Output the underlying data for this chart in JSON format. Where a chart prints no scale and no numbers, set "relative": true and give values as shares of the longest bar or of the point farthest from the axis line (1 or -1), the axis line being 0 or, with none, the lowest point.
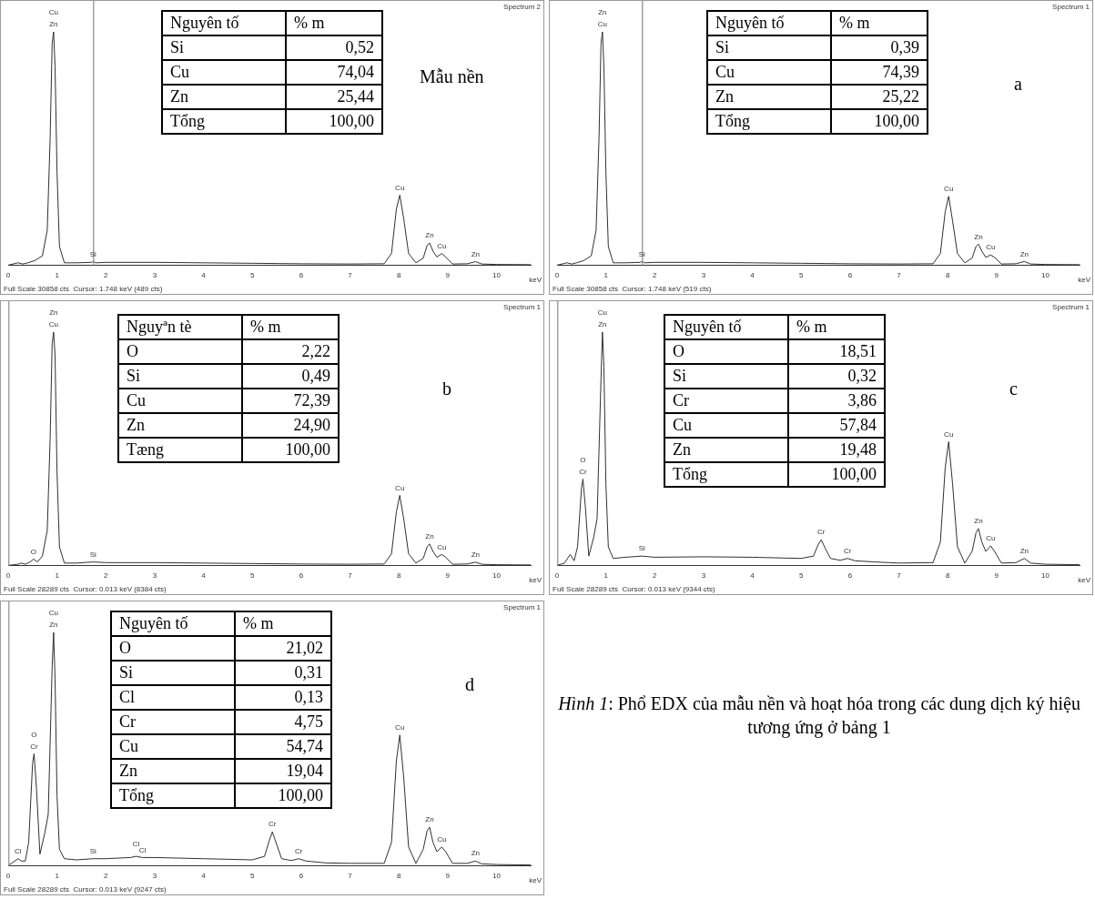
{
  "chart_data": [
    {
      "type": "line",
      "relative": true,
      "xlabel": "keV",
      "xlim": [
        0,
        10.7
      ],
      "xticks": [
        0,
        1,
        2,
        3,
        4,
        5,
        6,
        7,
        8,
        9,
        10
      ],
      "ref_lines": [
        {
          "axis": "x",
          "value": 1.748,
          "color": "#a0a0a0"
        }
      ],
      "annotations": [
        "Spectrum 2",
        "Full Scale 30858 cts  Cursor: 1.748 keV (489 cts)",
        "Mẫu nền",
        "Nguyên tố",
        "% m",
        "Si",
        "0,52",
        "Cu",
        "74,04",
        "Zn",
        "25,44",
        "Tổng",
        "100,00",
        {
          "text": "Zn",
          "x": 0.93,
          "y": 1
        },
        {
          "text": "Cu",
          "x": 0.93,
          "y": 1
        },
        {
          "text": "Si",
          "x": 1.74,
          "y": 0.015
        },
        {
          "text": "Cu",
          "x": 8.02,
          "y": 0.3
        },
        {
          "text": "Zn",
          "x": 8.63,
          "y": 0.095
        },
        {
          "text": "Cu",
          "x": 8.88,
          "y": 0.05
        },
        {
          "text": "Zn",
          "x": 9.57,
          "y": 0.015
        }
      ],
      "series": [
        {
          "color": "#303030",
          "x": [
            0,
            0.2,
            0.3,
            0.4,
            0.55,
            0.7,
            0.8,
            0.86,
            0.9,
            0.93,
            0.96,
            1.0,
            1.05,
            1.15,
            1.4,
            1.7,
            1.74,
            1.8,
            2.0,
            3,
            4,
            5,
            6,
            7,
            7.7,
            7.85,
            7.95,
            8.02,
            8.1,
            8.2,
            8.35,
            8.5,
            8.58,
            8.63,
            8.7,
            8.78,
            8.88,
            8.96,
            9.1,
            9.4,
            9.57,
            9.7,
            10,
            10.7
          ],
          "values": [
            0,
            0.01,
            0.005,
            0.01,
            0.02,
            0.04,
            0.15,
            0.55,
            0.95,
            1,
            0.85,
            0.4,
            0.08,
            0.01,
            0.01,
            0.012,
            0.015,
            0.01,
            0.012,
            0.012,
            0.01,
            0.008,
            0.006,
            0.005,
            0.006,
            0.05,
            0.24,
            0.3,
            0.2,
            0.05,
            0.01,
            0.03,
            0.085,
            0.095,
            0.06,
            0.035,
            0.05,
            0.035,
            0.005,
            0.006,
            0.015,
            0.005,
            0.003,
            0.002
          ]
        }
      ]
    },
    {
      "type": "line",
      "relative": true,
      "xlabel": "keV",
      "xlim": [
        0,
        10.7
      ],
      "xticks": [
        0,
        1,
        2,
        3,
        4,
        5,
        6,
        7,
        8,
        9,
        10
      ],
      "ref_lines": [
        {
          "axis": "x",
          "value": 1.748,
          "color": "#a0a0a0"
        }
      ],
      "annotations": [
        "Spectrum 1",
        "Full Scale 30858 cts  Cursor: 1.748 keV (519 cts)",
        "a",
        "Nguyên tố",
        "% m",
        "Si",
        "0,39",
        "Cu",
        "74,39",
        "Zn",
        "25,22",
        "Tổng",
        "100,00",
        {
          "text": "Cu",
          "x": 0.93,
          "y": 1
        },
        {
          "text": "Zn",
          "x": 0.93,
          "y": 1
        },
        {
          "text": "Si",
          "x": 1.74,
          "y": 0.016
        },
        {
          "text": "Cu",
          "x": 8.02,
          "y": 0.295
        },
        {
          "text": "Zn",
          "x": 8.63,
          "y": 0.09
        },
        {
          "text": "Cu",
          "x": 8.88,
          "y": 0.044
        },
        {
          "text": "Zn",
          "x": 9.57,
          "y": 0.016
        }
      ],
      "series": [
        {
          "color": "#303030",
          "x": [
            0,
            0.2,
            0.3,
            0.4,
            0.55,
            0.7,
            0.8,
            0.86,
            0.9,
            0.93,
            0.96,
            1.0,
            1.05,
            1.15,
            1.4,
            1.7,
            1.74,
            1.8,
            2.0,
            3,
            4,
            5,
            6,
            7,
            7.7,
            7.85,
            7.95,
            8.02,
            8.1,
            8.2,
            8.35,
            8.5,
            8.58,
            8.63,
            8.7,
            8.78,
            8.88,
            8.96,
            9.1,
            9.4,
            9.57,
            9.7,
            10,
            10.7
          ],
          "values": [
            0,
            0.01,
            0.005,
            0.01,
            0.02,
            0.04,
            0.15,
            0.55,
            0.95,
            1,
            0.85,
            0.4,
            0.08,
            0.01,
            0.01,
            0.012,
            0.016,
            0.01,
            0.012,
            0.012,
            0.01,
            0.008,
            0.006,
            0.005,
            0.006,
            0.05,
            0.23,
            0.295,
            0.19,
            0.05,
            0.01,
            0.03,
            0.08,
            0.09,
            0.06,
            0.033,
            0.044,
            0.033,
            0.005,
            0.006,
            0.016,
            0.005,
            0.003,
            0.002
          ]
        }
      ]
    },
    {
      "type": "line",
      "relative": true,
      "xlabel": "keV",
      "xlim": [
        0,
        10.7
      ],
      "xticks": [
        0,
        1,
        2,
        3,
        4,
        5,
        6,
        7,
        8,
        9,
        10
      ],
      "ref_lines": [
        {
          "axis": "x",
          "value": 0.013,
          "color": "#a0a0a0"
        }
      ],
      "annotations": [
        "Spectrum 1",
        "Full Scale 28289 cts  Cursor: 0.013 keV (8384 cts)",
        "b",
        "Nguyªn tè",
        "% m",
        "O",
        "2,22",
        "Si",
        "0,49",
        "Cu",
        "72,39",
        "Zn",
        "24,90",
        "Tæng",
        "100,00",
        {
          "text": "Cu",
          "x": 0.93,
          "y": 1
        },
        {
          "text": "Zn",
          "x": 0.93,
          "y": 1
        },
        {
          "text": "O",
          "x": 0.52,
          "y": 0.027
        },
        {
          "text": "Si",
          "x": 1.74,
          "y": 0.015
        },
        {
          "text": "Cu",
          "x": 8.02,
          "y": 0.3
        },
        {
          "text": "Zn",
          "x": 8.63,
          "y": 0.092
        },
        {
          "text": "Cu",
          "x": 8.88,
          "y": 0.047
        },
        {
          "text": "Zn",
          "x": 9.57,
          "y": 0.014
        }
      ],
      "series": [
        {
          "color": "#303030",
          "x": [
            0,
            0.2,
            0.27,
            0.35,
            0.45,
            0.52,
            0.6,
            0.7,
            0.8,
            0.86,
            0.9,
            0.93,
            0.96,
            1.0,
            1.05,
            1.15,
            1.4,
            1.74,
            2.0,
            3,
            4,
            5,
            6,
            7,
            7.7,
            7.85,
            7.95,
            8.02,
            8.1,
            8.2,
            8.35,
            8.5,
            8.58,
            8.63,
            8.7,
            8.78,
            8.88,
            8.96,
            9.1,
            9.4,
            9.57,
            9.7,
            10,
            10.7
          ],
          "values": [
            0,
            0.005,
            0.01,
            0.005,
            0.015,
            0.027,
            0.015,
            0.04,
            0.15,
            0.55,
            0.95,
            1,
            0.9,
            0.4,
            0.08,
            0.01,
            0.01,
            0.015,
            0.012,
            0.012,
            0.01,
            0.008,
            0.006,
            0.005,
            0.006,
            0.05,
            0.23,
            0.3,
            0.2,
            0.05,
            0.01,
            0.03,
            0.08,
            0.092,
            0.06,
            0.035,
            0.047,
            0.035,
            0.005,
            0.006,
            0.014,
            0.005,
            0.003,
            0.002
          ]
        }
      ]
    },
    {
      "type": "line",
      "relative": true,
      "xlabel": "keV",
      "xlim": [
        0,
        10.7
      ],
      "xticks": [
        0,
        1,
        2,
        3,
        4,
        5,
        6,
        7,
        8,
        9,
        10
      ],
      "ref_lines": [
        {
          "axis": "x",
          "value": 0.013,
          "color": "#a0a0a0"
        }
      ],
      "annotations": [
        "Spectrum 1",
        "Full Scale 28289 cts  Cursor: 0.013 keV (9344 cts)",
        "c",
        "Nguyên tố",
        "% m",
        "O",
        "18,51",
        "Si",
        "0,32",
        "Cr",
        "3,86",
        "Cu",
        "57,84",
        "Zn",
        "19,48",
        "Tổng",
        "100,00",
        {
          "text": "Cr",
          "x": 0.53,
          "y": 0.37
        },
        {
          "text": "O",
          "x": 0.53,
          "y": 0.37
        },
        {
          "text": "Zn",
          "x": 0.93,
          "y": 1
        },
        {
          "text": "Cu",
          "x": 0.93,
          "y": 1
        },
        {
          "text": "Si",
          "x": 1.74,
          "y": 0.04
        },
        {
          "text": "Cr",
          "x": 5.41,
          "y": 0.11
        },
        {
          "text": "Cr",
          "x": 5.95,
          "y": 0.03
        },
        {
          "text": "Cu",
          "x": 8.02,
          "y": 0.53
        },
        {
          "text": "Zn",
          "x": 8.63,
          "y": 0.158
        },
        {
          "text": "Cu",
          "x": 8.88,
          "y": 0.084
        },
        {
          "text": "Zn",
          "x": 9.57,
          "y": 0.03
        }
      ],
      "series": [
        {
          "color": "#303030",
          "x": [
            0,
            0.15,
            0.27,
            0.35,
            0.42,
            0.5,
            0.53,
            0.58,
            0.65,
            0.75,
            0.82,
            0.9,
            0.93,
            0.96,
            1.0,
            1.05,
            1.15,
            1.4,
            1.74,
            2,
            3,
            4,
            5,
            5.25,
            5.35,
            5.41,
            5.5,
            5.6,
            5.8,
            5.95,
            6.1,
            6.5,
            7,
            7.7,
            7.85,
            7.95,
            8.02,
            8.1,
            8.2,
            8.35,
            8.5,
            8.58,
            8.63,
            8.7,
            8.78,
            8.88,
            8.96,
            9.1,
            9.4,
            9.57,
            9.7,
            10,
            10.7
          ],
          "values": [
            0,
            0.01,
            0.047,
            0.02,
            0.08,
            0.33,
            0.37,
            0.25,
            0.04,
            0.12,
            0.2,
            0.8,
            1,
            0.85,
            0.35,
            0.08,
            0.03,
            0.035,
            0.04,
            0.035,
            0.037,
            0.035,
            0.03,
            0.04,
            0.09,
            0.11,
            0.07,
            0.03,
            0.022,
            0.03,
            0.02,
            0.015,
            0.01,
            0.012,
            0.1,
            0.42,
            0.53,
            0.35,
            0.08,
            0.01,
            0.06,
            0.14,
            0.158,
            0.1,
            0.06,
            0.084,
            0.06,
            0.01,
            0.012,
            0.03,
            0.01,
            0.005,
            0.003
          ]
        }
      ]
    },
    {
      "type": "line",
      "relative": true,
      "xlabel": "keV",
      "xlim": [
        0,
        10.7
      ],
      "xticks": [
        0,
        1,
        2,
        3,
        4,
        5,
        6,
        7,
        8,
        9,
        10
      ],
      "ref_lines": [
        {
          "axis": "x",
          "value": 0.013,
          "color": "#a0a0a0"
        }
      ],
      "annotations": [
        "Spectrum 1",
        "Full Scale 28289 cts  Cursor: 0.013 keV (9247 cts)",
        "d",
        "Nguyên tố",
        "% m",
        "O",
        "21,02",
        "Si",
        "0,31",
        "Cl",
        "0,13",
        "Cr",
        "4,75",
        "Cu",
        "54,74",
        "Zn",
        "19,04",
        "Tổng",
        "100,00",
        {
          "text": "Cl",
          "x": 0.2,
          "y": 0.03
        },
        {
          "text": "Cr",
          "x": 0.53,
          "y": 0.48
        },
        {
          "text": "O",
          "x": 0.53,
          "y": 0.48
        },
        {
          "text": "Zn",
          "x": 0.93,
          "y": 1
        },
        {
          "text": "Cu",
          "x": 0.93,
          "y": 1
        },
        {
          "text": "Si",
          "x": 1.74,
          "y": 0.03
        },
        {
          "text": "Cl",
          "x": 2.62,
          "y": 0.06
        },
        {
          "text": "Cl",
          "x": 2.75,
          "y": 0.035
        },
        {
          "text": "Cr",
          "x": 5.41,
          "y": 0.145
        },
        {
          "text": "Cr",
          "x": 5.95,
          "y": 0.03
        },
        {
          "text": "Cu",
          "x": 8.02,
          "y": 0.56
        },
        {
          "text": "Zn",
          "x": 8.63,
          "y": 0.165
        },
        {
          "text": "Cu",
          "x": 8.88,
          "y": 0.08
        },
        {
          "text": "Zn",
          "x": 9.57,
          "y": 0.02
        }
      ],
      "series": [
        {
          "color": "#303030",
          "x": [
            0,
            0.2,
            0.27,
            0.35,
            0.42,
            0.5,
            0.53,
            0.58,
            0.65,
            0.75,
            0.82,
            0.9,
            0.93,
            0.96,
            1.0,
            1.05,
            1.15,
            1.4,
            1.74,
            2,
            2.5,
            2.62,
            2.75,
            3,
            4,
            5,
            5.25,
            5.35,
            5.41,
            5.5,
            5.6,
            5.8,
            5.95,
            6.1,
            6.5,
            7,
            7.7,
            7.85,
            7.95,
            8.02,
            8.1,
            8.2,
            8.35,
            8.5,
            8.58,
            8.63,
            8.7,
            8.78,
            8.88,
            8.96,
            9.1,
            9.4,
            9.57,
            9.7,
            10,
            10.7
          ],
          "values": [
            0,
            0.03,
            0.02,
            0.02,
            0.1,
            0.44,
            0.48,
            0.33,
            0.05,
            0.14,
            0.22,
            0.85,
            1,
            0.8,
            0.3,
            0.07,
            0.03,
            0.025,
            0.03,
            0.03,
            0.035,
            0.04,
            0.035,
            0.035,
            0.03,
            0.025,
            0.04,
            0.11,
            0.145,
            0.09,
            0.03,
            0.022,
            0.03,
            0.02,
            0.012,
            0.01,
            0.01,
            0.1,
            0.45,
            0.56,
            0.38,
            0.08,
            0.01,
            0.07,
            0.15,
            0.165,
            0.1,
            0.06,
            0.08,
            0.06,
            0.01,
            0.01,
            0.02,
            0.008,
            0.005,
            0.003
          ]
        }
      ]
    },
    {
      "type": "other",
      "annotations": [
        "Hình 1",
        ": Phổ EDX của mẫu nền và hoạt hóa trong các dung dịch ký hiệu tương ứng ở bảng 1"
      ]
    }
  ]
}
